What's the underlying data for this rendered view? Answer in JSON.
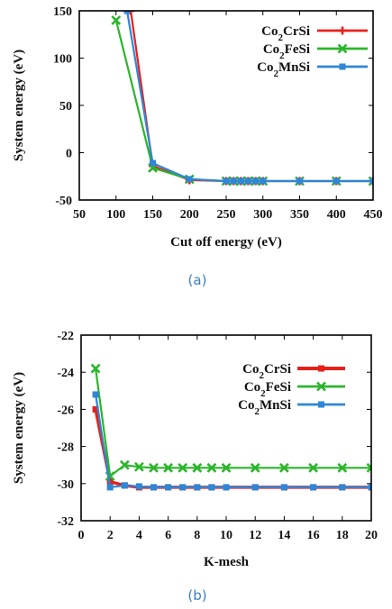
{
  "chart_data": [
    {
      "type": "line",
      "caption": "(a)",
      "xlabel": "Cut off energy (eV)",
      "ylabel": "System energy (eV)",
      "xlim": [
        50,
        450
      ],
      "ylim": [
        -50,
        150
      ],
      "xticks": [
        50,
        100,
        150,
        200,
        250,
        300,
        350,
        400,
        450
      ],
      "yticks": [
        -50,
        0,
        50,
        100,
        150
      ],
      "legend_position": "top-right",
      "series": [
        {
          "name": "Co2CrSi",
          "color": "#e8201c",
          "marker": "plus",
          "x": [
            120,
            150,
            200,
            250,
            260,
            270,
            280,
            290,
            300,
            350,
            400,
            450
          ],
          "y": [
            150,
            -14,
            -29,
            -30,
            -30,
            -30,
            -30,
            -30,
            -30,
            -30,
            -30,
            -30
          ]
        },
        {
          "name": "Co2FeSi",
          "color": "#2cb52c",
          "marker": "x",
          "x": [
            100,
            150,
            200,
            250,
            260,
            270,
            280,
            290,
            300,
            350,
            400,
            450
          ],
          "y": [
            140,
            -16,
            -28,
            -30,
            -30,
            -30,
            -30,
            -30,
            -30,
            -30,
            -30,
            -30
          ]
        },
        {
          "name": "Co2MnSi",
          "color": "#2f86d6",
          "marker": "square",
          "x": [
            115,
            150,
            200,
            250,
            260,
            270,
            280,
            290,
            300,
            350,
            400,
            450
          ],
          "y": [
            150,
            -11,
            -28,
            -30,
            -30,
            -30,
            -30,
            -30,
            -30,
            -30,
            -30,
            -30
          ]
        }
      ]
    },
    {
      "type": "line",
      "caption": "(b)",
      "xlabel": "K-mesh",
      "ylabel": "System energy (eV)",
      "xlim": [
        0,
        20
      ],
      "ylim": [
        -32,
        -22
      ],
      "xticks": [
        0,
        2,
        4,
        6,
        8,
        10,
        12,
        14,
        16,
        18,
        20
      ],
      "yticks": [
        -32,
        -30,
        -28,
        -26,
        -24,
        -22
      ],
      "legend_position": "top-right",
      "series": [
        {
          "name": "Co2CrSi",
          "color": "#e8201c",
          "marker": "square",
          "x": [
            1,
            2,
            3,
            4,
            5,
            6,
            7,
            8,
            9,
            10,
            12,
            14,
            16,
            18,
            20
          ],
          "y": [
            -26.0,
            -29.9,
            -30.1,
            -30.2,
            -30.2,
            -30.2,
            -30.2,
            -30.2,
            -30.2,
            -30.2,
            -30.2,
            -30.2,
            -30.2,
            -30.2,
            -30.2
          ]
        },
        {
          "name": "Co2FeSi",
          "color": "#2cb52c",
          "marker": "x",
          "x": [
            1,
            2,
            3,
            4,
            5,
            6,
            7,
            8,
            9,
            10,
            12,
            14,
            16,
            18,
            20
          ],
          "y": [
            -23.8,
            -29.6,
            -29.0,
            -29.1,
            -29.15,
            -29.15,
            -29.15,
            -29.15,
            -29.15,
            -29.15,
            -29.15,
            -29.15,
            -29.15,
            -29.15,
            -29.15
          ]
        },
        {
          "name": "Co2MnSi",
          "color": "#2f86d6",
          "marker": "square",
          "x": [
            1,
            2,
            3,
            4,
            5,
            6,
            7,
            8,
            9,
            10,
            12,
            14,
            16,
            18,
            20
          ],
          "y": [
            -25.2,
            -30.2,
            -30.1,
            -30.15,
            -30.2,
            -30.2,
            -30.2,
            -30.2,
            -30.2,
            -30.2,
            -30.2,
            -30.2,
            -30.2,
            -30.2,
            -30.2
          ]
        }
      ]
    }
  ]
}
